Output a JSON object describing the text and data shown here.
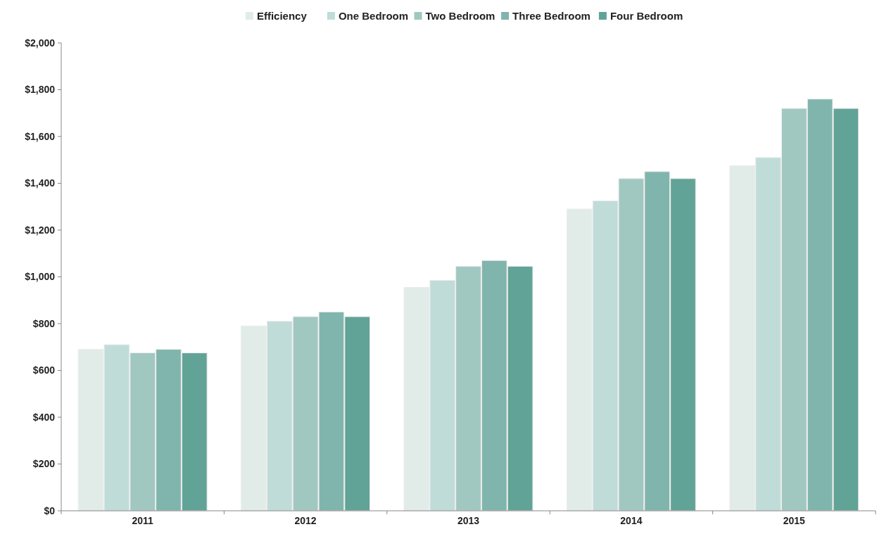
{
  "chart_data": {
    "type": "bar",
    "categories": [
      "2011",
      "2012",
      "2013",
      "2014",
      "2015"
    ],
    "series": [
      {
        "name": "Efficiency",
        "color": "#e1ece9",
        "values": [
          690,
          790,
          955,
          1290,
          1475
        ]
      },
      {
        "name": "One Bedroom",
        "color": "#c0dcd8",
        "values": [
          710,
          810,
          985,
          1325,
          1510
        ]
      },
      {
        "name": "Two Bedroom",
        "color": "#a1c7c1",
        "values": [
          675,
          830,
          1045,
          1420,
          1720
        ]
      },
      {
        "name": "Three Bedroom",
        "color": "#80b5ad",
        "values": [
          690,
          850,
          1070,
          1450,
          1760
        ]
      },
      {
        "name": "Four Bedroom",
        "color": "#62a397",
        "values": [
          675,
          830,
          1045,
          1420,
          1720
        ]
      }
    ],
    "ylim": [
      0,
      2000
    ],
    "yticks": [
      {
        "value": 0,
        "label": "$0"
      },
      {
        "value": 200,
        "label": "$200"
      },
      {
        "value": 400,
        "label": "$400"
      },
      {
        "value": 600,
        "label": "$600"
      },
      {
        "value": 800,
        "label": "$800"
      },
      {
        "value": 1000,
        "label": "$1,000"
      },
      {
        "value": 1200,
        "label": "$1,200"
      },
      {
        "value": 1400,
        "label": "$1,400"
      },
      {
        "value": 1600,
        "label": "$1,600"
      },
      {
        "value": 1800,
        "label": "$1,800"
      },
      {
        "value": 2000,
        "label": "$2,000"
      }
    ],
    "grid": false,
    "legend": "top"
  }
}
